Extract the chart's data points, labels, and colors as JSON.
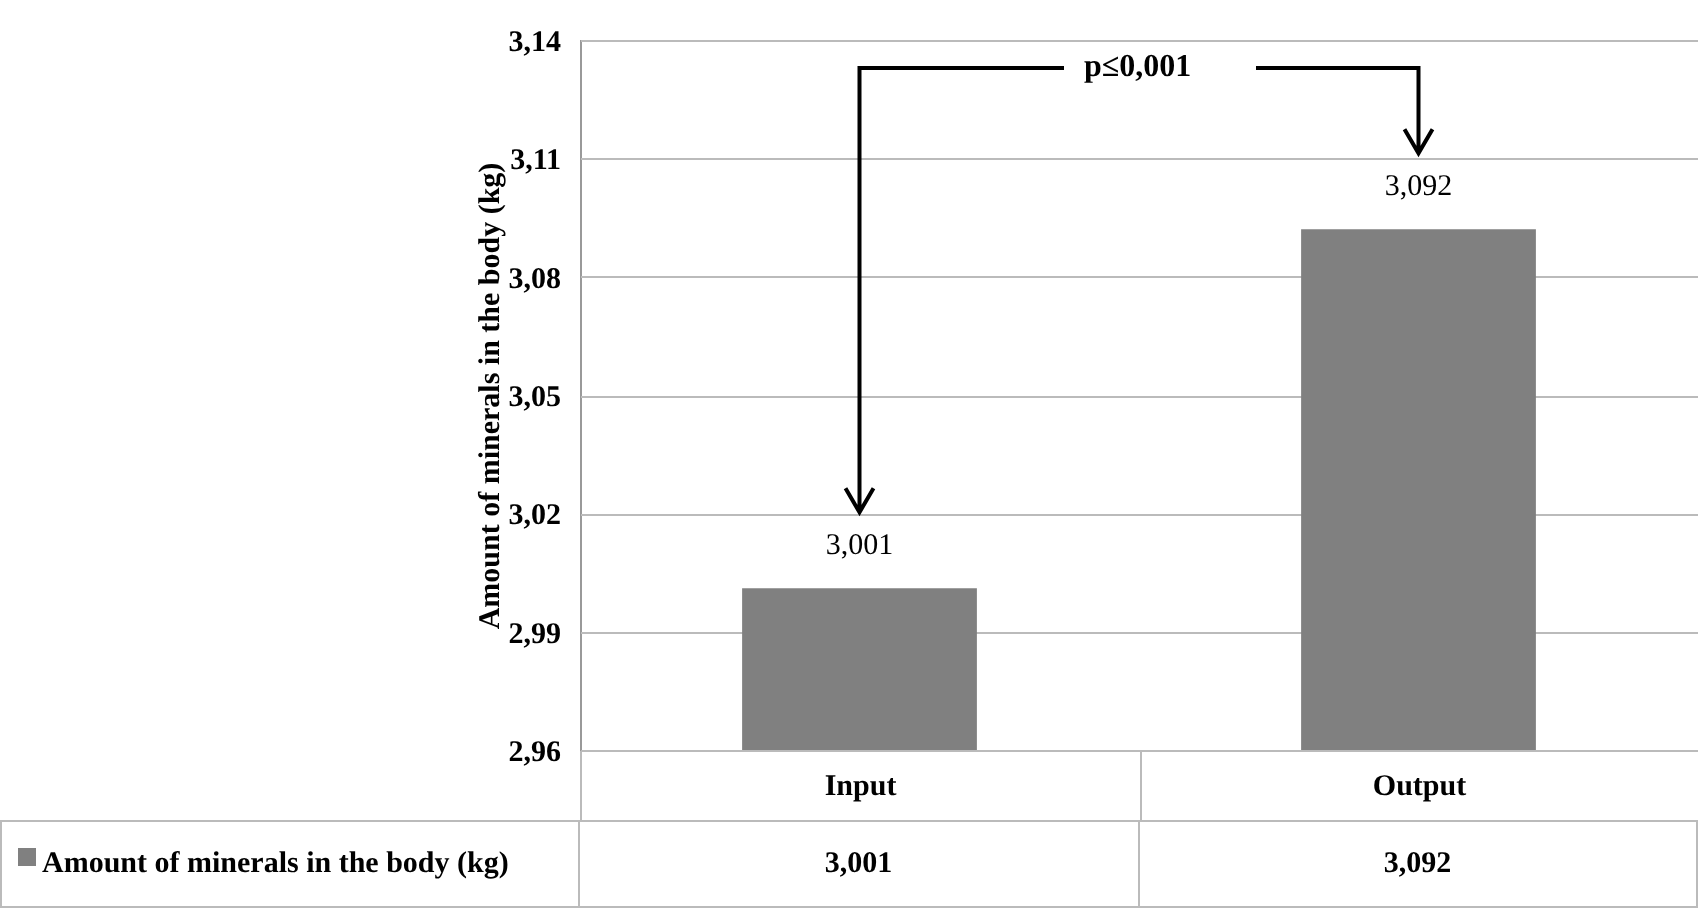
{
  "chart_data": {
    "type": "bar",
    "ylabel": "Amount of minerals in the body (kg)",
    "categories": [
      "Input",
      "Output"
    ],
    "series": [
      {
        "name": "Amount of minerals in the body (kg)",
        "color": "#808080",
        "values": [
          3.001,
          3.092
        ],
        "value_labels": [
          "3,001",
          "3,092"
        ]
      }
    ],
    "ylim": [
      2.96,
      3.14
    ],
    "yticks": [
      {
        "value": 2.96,
        "label": "2,96"
      },
      {
        "value": 2.99,
        "label": "2,99"
      },
      {
        "value": 3.02,
        "label": "3,02"
      },
      {
        "value": 3.05,
        "label": "3,05"
      },
      {
        "value": 3.08,
        "label": "3,08"
      },
      {
        "value": 3.11,
        "label": "3,11"
      },
      {
        "value": 3.14,
        "label": "3,14"
      }
    ],
    "grid": "y",
    "legend": "bottom",
    "annotations": [
      "p≤0,001"
    ]
  }
}
